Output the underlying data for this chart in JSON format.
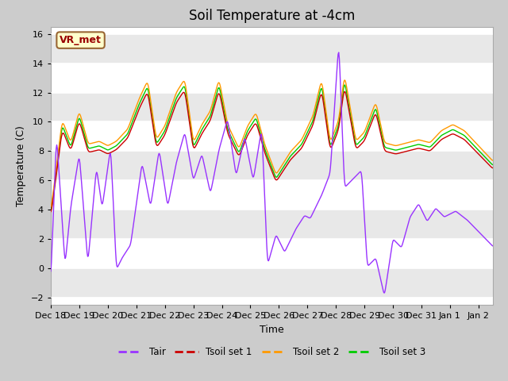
{
  "title": "Soil Temperature at -4cm",
  "xlabel": "Time",
  "ylabel": "Temperature (C)",
  "ylim": [
    -2.5,
    16.5
  ],
  "yticks": [
    -2,
    0,
    2,
    4,
    6,
    8,
    10,
    12,
    14,
    16
  ],
  "x_tick_labels": [
    "Dec 18",
    "Dec 19",
    "Dec 20",
    "Dec 21",
    "Dec 22",
    "Dec 23",
    "Dec 24",
    "Dec 25",
    "Dec 26",
    "Dec 27",
    "Dec 28",
    "Dec 29",
    "Dec 30",
    "Dec 31",
    "Jan 1",
    "Jan 2"
  ],
  "legend_labels": [
    "Tair",
    "Tsoil set 1",
    "Tsoil set 2",
    "Tsoil set 3"
  ],
  "colors": {
    "Tair": "#9933ff",
    "Tsoil1": "#cc0000",
    "Tsoil2": "#ff9900",
    "Tsoil3": "#00cc00"
  },
  "label_box": "VR_met",
  "label_box_facecolor": "#ffffcc",
  "label_box_edgecolor": "#996633",
  "plot_bg_color": "#ffffff",
  "alt_band_color": "#e8e8e8",
  "title_fontsize": 12,
  "axis_fontsize": 9,
  "tick_fontsize": 8,
  "linewidth": 1.0
}
